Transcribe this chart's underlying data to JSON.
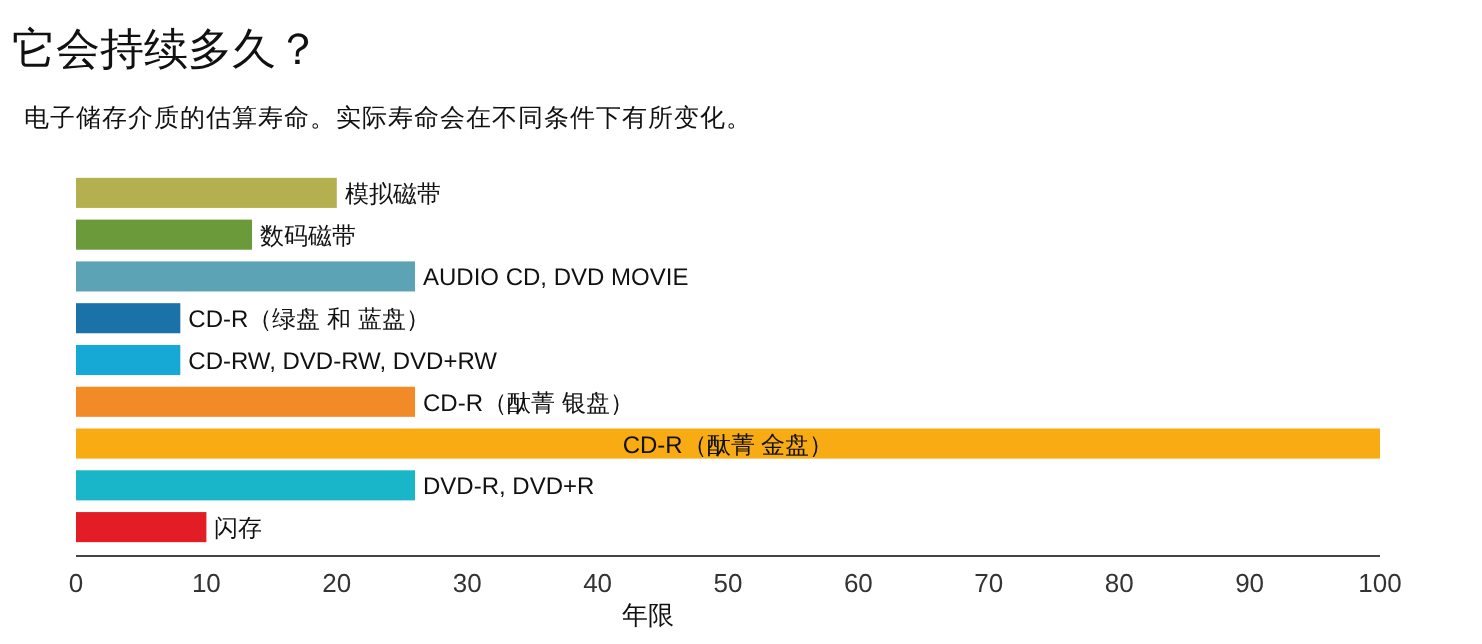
{
  "chart_data": {
    "type": "bar",
    "orientation": "horizontal",
    "title": "它会持续多久？",
    "subtitle": "电子储存介质的估算寿命。实际寿命会在不同条件下有所变化。",
    "xlabel": "年限",
    "categories": [
      "模拟磁带",
      "数码磁带",
      "AUDIO CD, DVD MOVIE",
      "CD-R（绿盘 和 蓝盘）",
      "CD-RW, DVD-RW, DVD+RW",
      "CD-R（酞菁 银盘）",
      "CD-R（酞菁 金盘）",
      "DVD-R, DVD+R",
      "闪存"
    ],
    "values": [
      20,
      13.5,
      26,
      8,
      8,
      26,
      100,
      26,
      10
    ],
    "colors": [
      "#b5b04f",
      "#6a9a3a",
      "#5ba3b5",
      "#1a72a8",
      "#17a9d6",
      "#f28a28",
      "#f9ab14",
      "#19b5c8",
      "#e31d25"
    ],
    "xlim": [
      0,
      100
    ],
    "xticks": [
      0,
      10,
      20,
      30,
      40,
      50,
      60,
      70,
      80,
      90,
      100
    ],
    "grid": false
  }
}
